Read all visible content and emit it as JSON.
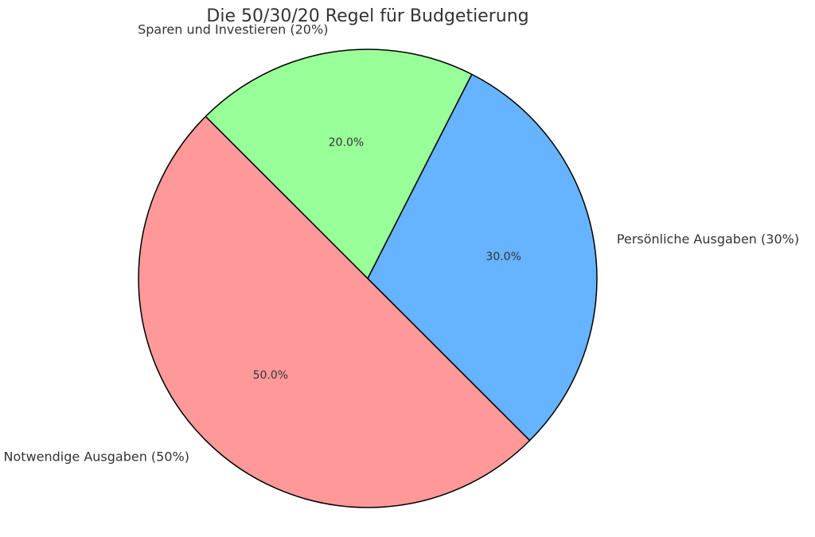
{
  "chart_data": {
    "type": "pie",
    "title": "Die 50/30/20 Regel für Budgetierung",
    "categories": [
      "Notwendige Ausgaben (50%)",
      "Persönliche Ausgaben (30%)",
      "Sparen und Investieren (20%)"
    ],
    "values": [
      50,
      30,
      20
    ],
    "percent_labels": [
      "50.0%",
      "30.0%",
      "20.0%"
    ],
    "colors": [
      "#ff9999",
      "#66b3ff",
      "#99ff99"
    ],
    "start_angle_deg": 135,
    "direction": "counterclockwise",
    "edge_color": "#000000"
  }
}
